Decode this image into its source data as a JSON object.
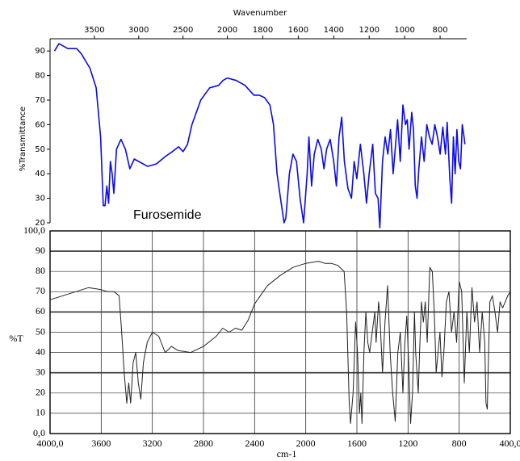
{
  "chart_data": [
    {
      "type": "line",
      "xlabel": "Wavenumber",
      "ylabel": "%Transmittance",
      "annotation": "Furosemide",
      "xaxis_position": "top",
      "xscale_break": 2000,
      "color": "#0a0af0",
      "xlim": [
        4000,
        650
      ],
      "xticks": [
        3500,
        3000,
        2500,
        2000,
        1800,
        1600,
        1400,
        1200,
        1000,
        800
      ],
      "ylim": [
        20,
        95
      ],
      "yticks": [
        20,
        30,
        40,
        50,
        60,
        70,
        80,
        90
      ],
      "x": [
        3950,
        3900,
        3850,
        3800,
        3700,
        3650,
        3550,
        3480,
        3430,
        3400,
        3380,
        3360,
        3340,
        3320,
        3300,
        3280,
        3250,
        3200,
        3150,
        3100,
        3050,
        3000,
        2900,
        2800,
        2700,
        2620,
        2550,
        2500,
        2450,
        2400,
        2300,
        2200,
        2100,
        2050,
        2000,
        1950,
        1900,
        1850,
        1820,
        1790,
        1760,
        1740,
        1720,
        1700,
        1680,
        1670,
        1650,
        1630,
        1610,
        1590,
        1570,
        1550,
        1540,
        1525,
        1510,
        1490,
        1470,
        1455,
        1440,
        1420,
        1400,
        1385,
        1370,
        1355,
        1340,
        1320,
        1300,
        1285,
        1270,
        1250,
        1230,
        1215,
        1200,
        1180,
        1165,
        1150,
        1140,
        1125,
        1110,
        1095,
        1080,
        1065,
        1050,
        1040,
        1025,
        1010,
        995,
        985,
        975,
        960,
        950,
        940,
        930,
        920,
        905,
        890,
        875,
        860,
        845,
        830,
        815,
        800,
        785,
        770,
        760,
        745,
        735,
        725,
        715,
        705,
        695,
        685,
        675,
        665,
        660
      ],
      "values": [
        90,
        93,
        92,
        91,
        91,
        89,
        83,
        75,
        55,
        27,
        27,
        35,
        28,
        45,
        40,
        32,
        50,
        54,
        50,
        42,
        46,
        45,
        43,
        44,
        47,
        49,
        51,
        49,
        52,
        60,
        70,
        75,
        76,
        78,
        79,
        78,
        76,
        72,
        72,
        71,
        68,
        60,
        40,
        30,
        20,
        22,
        40,
        48,
        45,
        30,
        20,
        40,
        55,
        35,
        48,
        54,
        50,
        42,
        50,
        54,
        45,
        35,
        55,
        63,
        45,
        34,
        30,
        45,
        38,
        52,
        40,
        28,
        40,
        52,
        32,
        30,
        18,
        45,
        55,
        48,
        58,
        40,
        53,
        62,
        45,
        68,
        60,
        62,
        50,
        65,
        58,
        35,
        30,
        42,
        55,
        45,
        60,
        55,
        52,
        60,
        55,
        48,
        59,
        48,
        61,
        38,
        28,
        55,
        40,
        58,
        45,
        42,
        60,
        55,
        52
      ]
    },
    {
      "type": "line",
      "xlabel": "cm-1",
      "ylabel": "%T",
      "grid": true,
      "color": "#222222",
      "xlim": [
        4000,
        400
      ],
      "xticks": [
        {
          "value": 4000,
          "label": "4000,0"
        },
        3600,
        3200,
        2800,
        2400,
        2000,
        1600,
        1200,
        800,
        {
          "value": 400,
          "label": "400,0"
        }
      ],
      "ylim": [
        0,
        100
      ],
      "yticks": [
        {
          "value": 0,
          "label": "0,0"
        },
        10,
        20,
        30,
        40,
        50,
        60,
        70,
        80,
        90,
        {
          "value": 100,
          "label": "100,0"
        }
      ],
      "x": [
        4000,
        3900,
        3800,
        3700,
        3600,
        3550,
        3500,
        3460,
        3440,
        3420,
        3400,
        3385,
        3370,
        3350,
        3330,
        3310,
        3290,
        3270,
        3240,
        3200,
        3150,
        3100,
        3050,
        3000,
        2900,
        2800,
        2700,
        2650,
        2600,
        2550,
        2500,
        2450,
        2400,
        2300,
        2200,
        2100,
        2000,
        1900,
        1850,
        1800,
        1750,
        1700,
        1680,
        1660,
        1650,
        1630,
        1610,
        1595,
        1580,
        1570,
        1560,
        1545,
        1530,
        1515,
        1500,
        1480,
        1460,
        1450,
        1430,
        1420,
        1400,
        1380,
        1360,
        1340,
        1320,
        1300,
        1280,
        1260,
        1240,
        1225,
        1210,
        1195,
        1180,
        1165,
        1150,
        1140,
        1120,
        1110,
        1095,
        1080,
        1065,
        1050,
        1030,
        1010,
        995,
        980,
        965,
        950,
        935,
        920,
        900,
        880,
        860,
        840,
        820,
        800,
        780,
        760,
        740,
        720,
        700,
        680,
        660,
        640,
        620,
        600,
        590,
        580,
        570,
        560,
        540,
        520,
        500,
        480,
        460,
        440,
        420,
        400
      ],
      "values": [
        66,
        68,
        70,
        72,
        71,
        70,
        70,
        68,
        50,
        30,
        15,
        25,
        15,
        35,
        40,
        25,
        17,
        35,
        45,
        50,
        48,
        40,
        43,
        41,
        40,
        43,
        48,
        52,
        50,
        52,
        51,
        56,
        64,
        73,
        78,
        82,
        84,
        85,
        84,
        84,
        83,
        80,
        60,
        15,
        5,
        20,
        55,
        40,
        10,
        20,
        5,
        40,
        60,
        45,
        40,
        50,
        60,
        45,
        65,
        58,
        30,
        55,
        73,
        40,
        20,
        6,
        40,
        50,
        20,
        45,
        58,
        35,
        5,
        20,
        60,
        40,
        20,
        40,
        65,
        55,
        65,
        45,
        82,
        80,
        60,
        30,
        40,
        50,
        28,
        40,
        65,
        70,
        50,
        60,
        45,
        75,
        70,
        25,
        60,
        40,
        72,
        55,
        65,
        40,
        60,
        45,
        15,
        12,
        40,
        65,
        68,
        60,
        50,
        65,
        62,
        65,
        68,
        70
      ]
    }
  ]
}
